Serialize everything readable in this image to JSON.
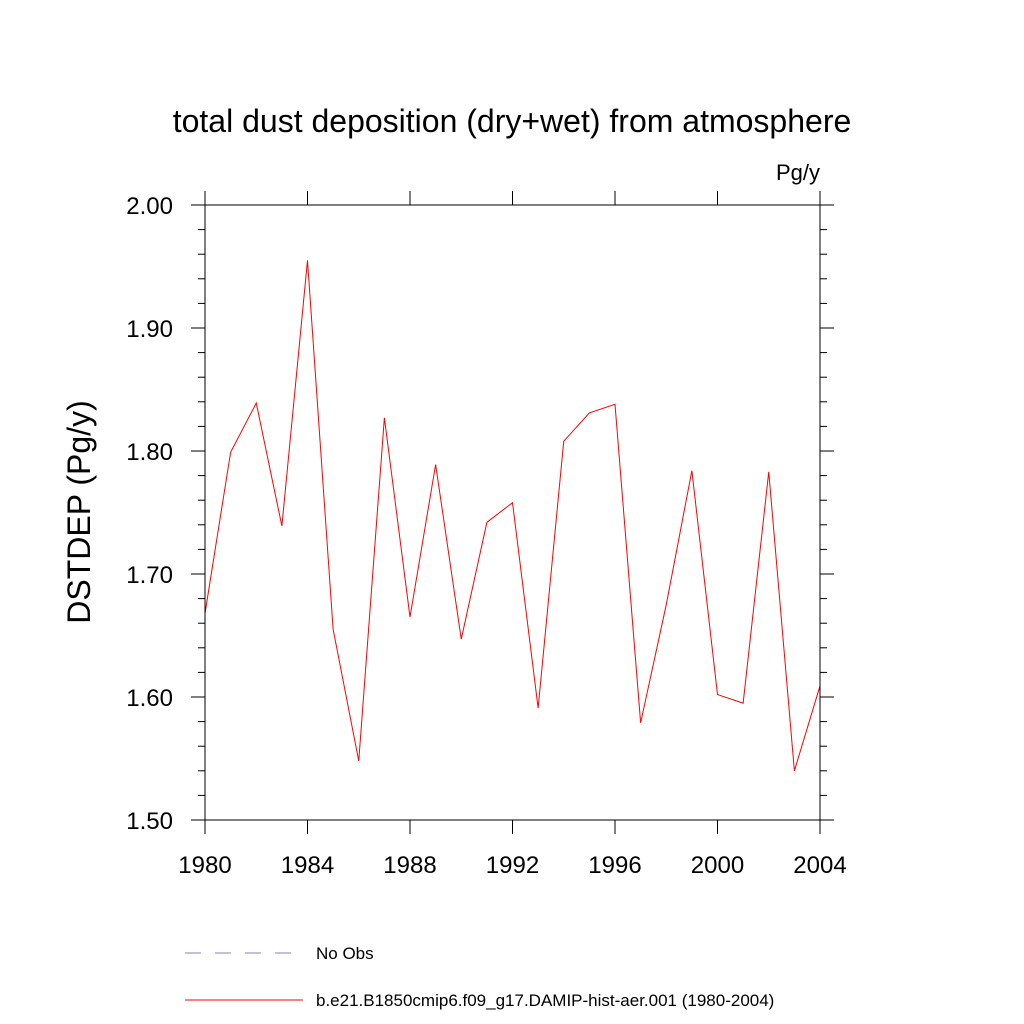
{
  "chart_data": {
    "type": "line",
    "title": "total dust deposition (dry+wet) from atmosphere",
    "units": "Pg/y",
    "xlabel": "",
    "ylabel": "DSTDEP  (Pg/y)",
    "xlim": [
      1980,
      2004
    ],
    "ylim": [
      1.5,
      2.0
    ],
    "x_ticks": [
      1980,
      1984,
      1988,
      1992,
      1996,
      2000,
      2004
    ],
    "x_tick_labels": [
      "1980",
      "1984",
      "1988",
      "1992",
      "1996",
      "2000",
      "2004"
    ],
    "y_ticks": [
      1.5,
      1.6,
      1.7,
      1.8,
      1.9,
      2.0
    ],
    "y_tick_labels": [
      "1.50",
      "1.60",
      "1.70",
      "1.80",
      "1.90",
      "2.00"
    ],
    "grid": false,
    "legend_position": "bottom",
    "series": [
      {
        "name": "No Obs",
        "color": "#8080c0",
        "dash": "dashed",
        "x": [],
        "y": []
      },
      {
        "name": "b.e21.B1850cmip6.f09_g17.DAMIP-hist-aer.001 (1980-2004)",
        "color": "#ff0000",
        "dash": "solid",
        "x": [
          1980,
          1981,
          1982,
          1983,
          1984,
          1985,
          1986,
          1987,
          1988,
          1989,
          1990,
          1991,
          1992,
          1993,
          1994,
          1995,
          1996,
          1997,
          1998,
          1999,
          2000,
          2001,
          2002,
          2003,
          2004
        ],
        "y": [
          1.668,
          1.799,
          1.839,
          1.739,
          1.955,
          1.655,
          1.548,
          1.827,
          1.665,
          1.789,
          1.647,
          1.742,
          1.758,
          1.591,
          1.808,
          1.831,
          1.838,
          1.579,
          1.675,
          1.784,
          1.602,
          1.595,
          1.783,
          1.54,
          1.609
        ]
      }
    ]
  }
}
